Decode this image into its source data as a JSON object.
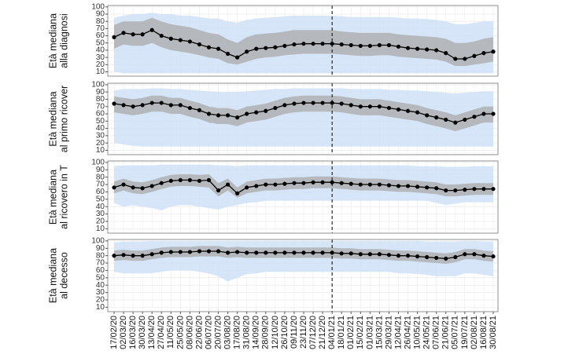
{
  "chart_data": {
    "type": "line",
    "categories": [
      "17/02/20",
      "02/03/20",
      "16/03/20",
      "30/03/20",
      "13/04/20",
      "27/04/20",
      "11/05/20",
      "25/05/20",
      "08/06/20",
      "22/06/20",
      "06/07/20",
      "20/07/20",
      "03/08/20",
      "17/08/20",
      "31/08/20",
      "14/09/20",
      "28/09/20",
      "12/10/20",
      "26/10/20",
      "09/11/20",
      "23/11/20",
      "07/12/20",
      "21/12/20",
      "04/01/21",
      "18/01/21",
      "01/02/21",
      "15/02/21",
      "01/03/21",
      "15/03/21",
      "29/03/21",
      "12/04/21",
      "26/04/21",
      "10/05/21",
      "24/05/21",
      "07/06/21",
      "21/06/21",
      "05/07/21",
      "19/07/21",
      "02/08/21",
      "16/08/21",
      "30/08/21"
    ],
    "marker_category": "04/01/21",
    "colors": {
      "median": "#000000",
      "iqr": "#a9a9a9",
      "range": "#cfe2f7"
    },
    "grid": true,
    "panels": [
      {
        "ylabel": [
          "Età mediana",
          "alla diagnosi"
        ],
        "ylim": [
          4,
          102
        ],
        "yticks": [
          10,
          20,
          30,
          40,
          50,
          60,
          70,
          80,
          90,
          100
        ],
        "median": [
          58,
          64,
          62,
          62,
          68,
          60,
          56,
          54,
          52,
          48,
          44,
          42,
          35,
          30,
          38,
          42,
          43,
          44,
          46,
          48,
          49,
          49,
          49,
          49,
          48,
          47,
          46,
          46,
          47,
          47,
          45,
          43,
          42,
          41,
          40,
          36,
          28,
          28,
          32,
          36,
          38
        ],
        "iqr_low": [
          42,
          48,
          46,
          46,
          50,
          44,
          40,
          38,
          36,
          33,
          30,
          28,
          22,
          20,
          24,
          28,
          30,
          31,
          33,
          34,
          35,
          35,
          35,
          35,
          34,
          33,
          32,
          32,
          33,
          33,
          31,
          30,
          29,
          28,
          27,
          24,
          18,
          18,
          20,
          22,
          24
        ],
        "iqr_high": [
          75,
          80,
          80,
          80,
          85,
          80,
          76,
          74,
          72,
          68,
          64,
          62,
          55,
          50,
          58,
          62,
          63,
          64,
          66,
          68,
          68,
          68,
          68,
          68,
          66,
          65,
          64,
          64,
          64,
          64,
          62,
          61,
          60,
          59,
          58,
          56,
          50,
          50,
          52,
          56,
          58
        ],
        "range_low": [
          10,
          8,
          8,
          8,
          8,
          8,
          8,
          8,
          8,
          8,
          8,
          8,
          8,
          8,
          8,
          8,
          8,
          8,
          8,
          8,
          8,
          8,
          8,
          8,
          8,
          8,
          8,
          8,
          8,
          8,
          8,
          8,
          8,
          8,
          8,
          8,
          8,
          8,
          8,
          8,
          8
        ],
        "range_high": [
          85,
          88,
          90,
          90,
          92,
          90,
          90,
          88,
          88,
          86,
          84,
          84,
          80,
          78,
          82,
          84,
          85,
          86,
          87,
          88,
          88,
          88,
          88,
          88,
          87,
          86,
          86,
          86,
          86,
          86,
          85,
          84,
          84,
          83,
          82,
          80,
          76,
          76,
          78,
          80,
          80
        ]
      },
      {
        "ylabel": [
          "Età mediana",
          "al primo ricover"
        ],
        "ylim": [
          4,
          102
        ],
        "yticks": [
          10,
          20,
          30,
          40,
          50,
          60,
          70,
          80,
          90,
          100
        ],
        "median": [
          74,
          72,
          70,
          72,
          75,
          75,
          72,
          72,
          68,
          65,
          60,
          58,
          58,
          55,
          60,
          62,
          64,
          68,
          72,
          74,
          75,
          75,
          75,
          75,
          74,
          72,
          70,
          70,
          70,
          68,
          66,
          64,
          62,
          58,
          55,
          52,
          48,
          52,
          56,
          60,
          60
        ],
        "iqr_low": [
          62,
          60,
          58,
          60,
          63,
          63,
          60,
          60,
          56,
          53,
          48,
          46,
          46,
          43,
          48,
          50,
          52,
          56,
          60,
          62,
          63,
          63,
          63,
          63,
          62,
          60,
          58,
          58,
          58,
          56,
          54,
          52,
          50,
          46,
          43,
          40,
          36,
          40,
          44,
          48,
          48
        ],
        "iqr_high": [
          84,
          82,
          80,
          82,
          85,
          85,
          82,
          82,
          78,
          75,
          70,
          68,
          68,
          65,
          70,
          72,
          74,
          78,
          82,
          84,
          85,
          85,
          85,
          85,
          84,
          82,
          80,
          80,
          80,
          78,
          76,
          74,
          72,
          68,
          65,
          62,
          58,
          62,
          66,
          70,
          70
        ],
        "range_low": [
          20,
          18,
          16,
          15,
          15,
          15,
          15,
          15,
          15,
          15,
          15,
          15,
          15,
          15,
          15,
          15,
          15,
          15,
          15,
          15,
          15,
          15,
          15,
          15,
          15,
          15,
          15,
          15,
          15,
          15,
          15,
          15,
          15,
          15,
          15,
          15,
          15,
          15,
          15,
          15,
          15
        ],
        "range_high": [
          92,
          94,
          94,
          94,
          95,
          95,
          94,
          94,
          93,
          92,
          91,
          90,
          90,
          90,
          91,
          92,
          93,
          94,
          94,
          95,
          95,
          95,
          95,
          95,
          95,
          94,
          94,
          94,
          94,
          93,
          93,
          92,
          92,
          91,
          90,
          89,
          88,
          89,
          90,
          91,
          91
        ]
      },
      {
        "ylabel": [
          "Età mediana",
          "al ricovero in T"
        ],
        "ylim": [
          4,
          102
        ],
        "yticks": [
          10,
          20,
          30,
          40,
          50,
          60,
          70,
          80,
          90,
          100
        ],
        "median": [
          66,
          70,
          66,
          65,
          68,
          72,
          75,
          76,
          76,
          75,
          76,
          62,
          70,
          58,
          66,
          68,
          70,
          70,
          71,
          72,
          72,
          73,
          73,
          73,
          72,
          71,
          70,
          70,
          70,
          69,
          68,
          68,
          67,
          66,
          65,
          62,
          62,
          63,
          64,
          64,
          64
        ],
        "iqr_low": [
          58,
          62,
          58,
          57,
          60,
          64,
          67,
          68,
          68,
          67,
          66,
          54,
          62,
          52,
          58,
          60,
          62,
          62,
          63,
          64,
          64,
          65,
          65,
          65,
          64,
          63,
          62,
          62,
          62,
          61,
          60,
          60,
          59,
          58,
          57,
          54,
          54,
          55,
          56,
          56,
          56
        ],
        "iqr_high": [
          74,
          78,
          74,
          73,
          76,
          80,
          83,
          84,
          84,
          83,
          84,
          72,
          78,
          66,
          74,
          76,
          78,
          78,
          79,
          80,
          80,
          81,
          81,
          81,
          80,
          79,
          78,
          78,
          78,
          77,
          76,
          76,
          75,
          74,
          73,
          70,
          70,
          71,
          72,
          72,
          72
        ],
        "range_low": [
          45,
          40,
          42,
          40,
          38,
          35,
          40,
          42,
          42,
          40,
          38,
          36,
          40,
          42,
          45,
          46,
          48,
          48,
          48,
          48,
          48,
          48,
          48,
          48,
          48,
          48,
          48,
          48,
          48,
          48,
          48,
          48,
          48,
          48,
          45,
          42,
          44,
          46,
          46,
          46,
          46
        ],
        "range_high": [
          95,
          96,
          96,
          96,
          96,
          97,
          97,
          97,
          97,
          97,
          97,
          96,
          96,
          95,
          96,
          96,
          96,
          96,
          96,
          96,
          96,
          96,
          96,
          96,
          96,
          96,
          96,
          96,
          96,
          96,
          96,
          96,
          95,
          95,
          95,
          94,
          94,
          94,
          95,
          95,
          95
        ]
      },
      {
        "ylabel": [
          "Età mediana",
          "al decesso"
        ],
        "ylim": [
          4,
          102
        ],
        "yticks": [
          10,
          20,
          30,
          40,
          50,
          60,
          70,
          80,
          90,
          100
        ],
        "median": [
          80,
          81,
          80,
          80,
          82,
          84,
          85,
          85,
          85,
          86,
          86,
          86,
          84,
          85,
          84,
          84,
          84,
          84,
          84,
          84,
          84,
          84,
          84,
          84,
          83,
          83,
          82,
          82,
          82,
          81,
          80,
          80,
          79,
          78,
          77,
          76,
          78,
          82,
          82,
          80,
          79
        ],
        "iqr_low": [
          73,
          74,
          73,
          73,
          75,
          77,
          78,
          78,
          78,
          79,
          79,
          79,
          77,
          78,
          77,
          77,
          77,
          77,
          77,
          77,
          77,
          77,
          77,
          77,
          76,
          76,
          75,
          75,
          75,
          74,
          73,
          73,
          72,
          71,
          70,
          69,
          71,
          75,
          75,
          73,
          72
        ],
        "iqr_high": [
          87,
          88,
          87,
          87,
          89,
          91,
          92,
          92,
          92,
          93,
          93,
          93,
          91,
          92,
          91,
          91,
          91,
          91,
          91,
          91,
          91,
          91,
          91,
          91,
          90,
          90,
          89,
          89,
          89,
          88,
          87,
          87,
          86,
          85,
          84,
          83,
          85,
          89,
          89,
          87,
          86
        ],
        "range_low": [
          58,
          56,
          56,
          56,
          56,
          58,
          60,
          60,
          60,
          58,
          56,
          52,
          45,
          50,
          55,
          56,
          58,
          58,
          58,
          58,
          58,
          58,
          58,
          58,
          58,
          58,
          58,
          58,
          58,
          58,
          56,
          56,
          55,
          54,
          52,
          52,
          52,
          56,
          56,
          54,
          52
        ],
        "range_high": [
          98,
          99,
          99,
          99,
          100,
          100,
          100,
          100,
          100,
          100,
          100,
          100,
          100,
          100,
          100,
          100,
          100,
          100,
          100,
          100,
          100,
          100,
          100,
          100,
          100,
          100,
          100,
          100,
          100,
          100,
          100,
          100,
          100,
          99,
          99,
          99,
          99,
          100,
          100,
          99,
          99
        ]
      }
    ]
  }
}
